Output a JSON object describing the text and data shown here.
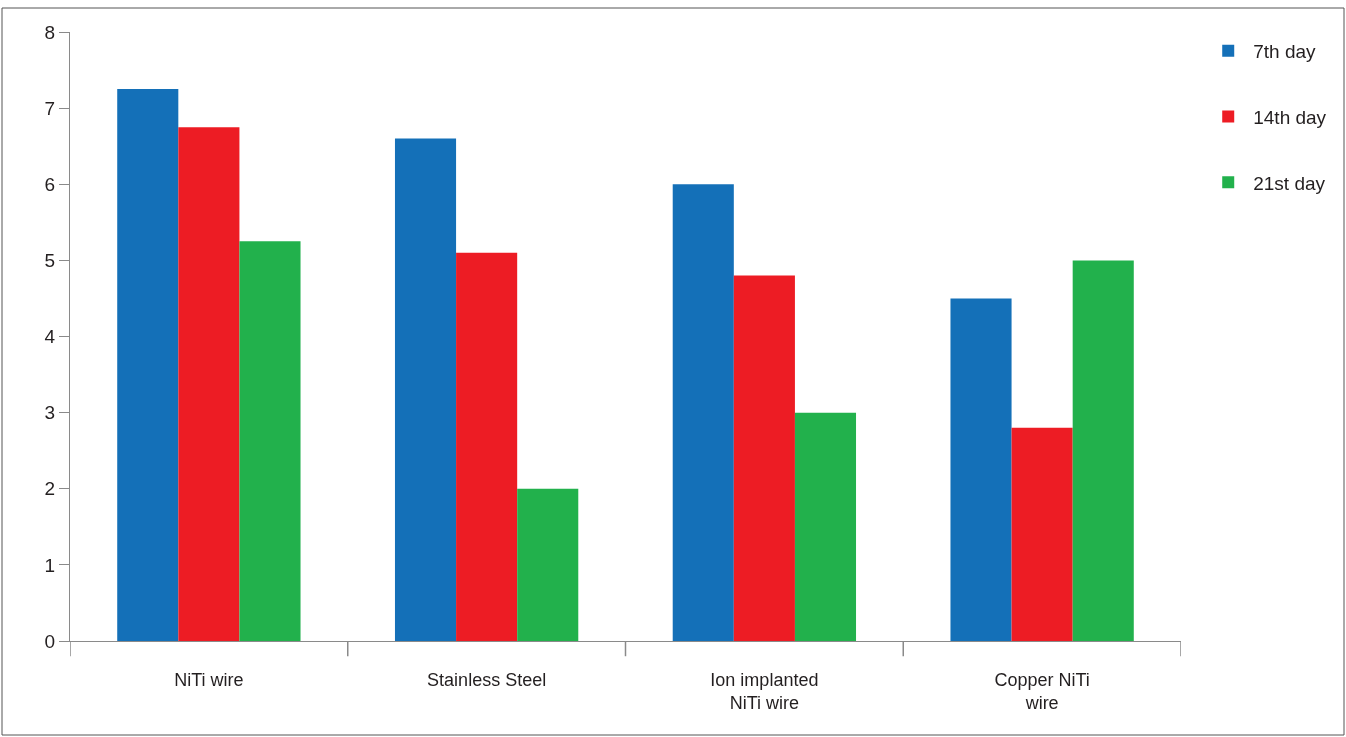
{
  "chart_data": {
    "type": "bar",
    "categories": [
      "NiTi wire",
      "Stainless Steel",
      "Ion implanted\nNiTi wire",
      "Copper NiTi\nwire"
    ],
    "series": [
      {
        "name": "7th day",
        "color": "#1470b8",
        "values": [
          7.25,
          6.6,
          6.0,
          4.5
        ]
      },
      {
        "name": "14th day",
        "color": "#ed1c24",
        "values": [
          6.75,
          5.1,
          4.8,
          2.8
        ]
      },
      {
        "name": "21st day",
        "color": "#22b14c",
        "values": [
          5.25,
          2.0,
          3.0,
          5.0
        ]
      }
    ],
    "ylim": [
      0,
      8
    ],
    "yticks": [
      0,
      1,
      2,
      3,
      4,
      5,
      6,
      7,
      8
    ],
    "legend": "top right"
  }
}
